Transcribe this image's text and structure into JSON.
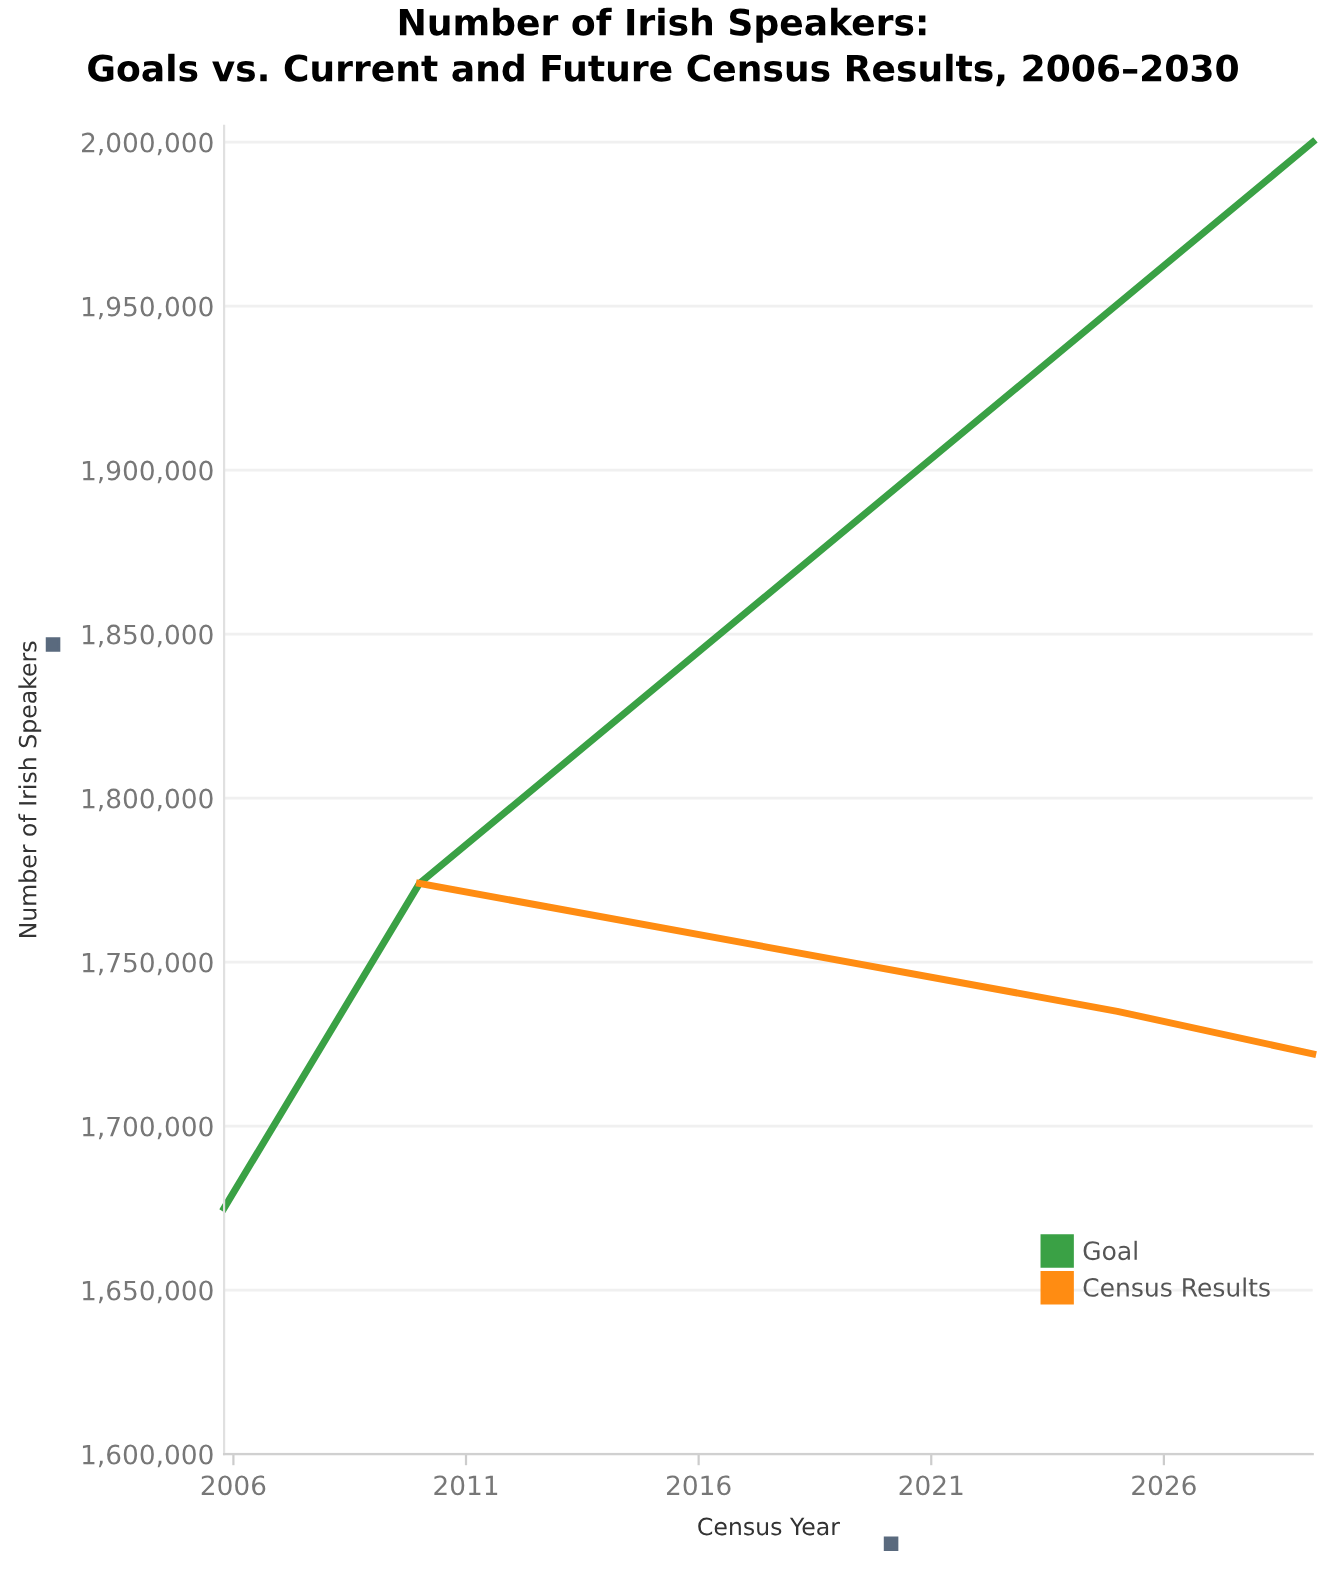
{
  "chart_data": {
    "type": "line",
    "title": "Number of Irish Speakers:\nGoals vs. Current and Future Census Results, 2006–2030",
    "xlabel": "Census Year",
    "ylabel": "Number of Irish Speakers",
    "series": [
      {
        "name": "Goal",
        "color": "#3aa145",
        "x": [
          2005.8,
          2010,
          2029.2
        ],
        "values": [
          1675000,
          1774000,
          2000000
        ]
      },
      {
        "name": "Census Results",
        "color": "#ff8c12",
        "x": [
          2010,
          2025,
          2029.2
        ],
        "values": [
          1774000,
          1735000,
          1722000
        ]
      }
    ],
    "xlim": [
      2005.8,
      2029.2
    ],
    "xticks": [
      2006,
      2011,
      2016,
      2021,
      2026
    ],
    "ylim": [
      1600000,
      2005000
    ],
    "yticks": [
      {
        "value": 1600000,
        "label": "1,600,000"
      },
      {
        "value": 1650000,
        "label": "1,650,000"
      },
      {
        "value": 1700000,
        "label": "1,700,000"
      },
      {
        "value": 1750000,
        "label": "1,750,000"
      },
      {
        "value": 1800000,
        "label": "1,800,000"
      },
      {
        "value": 1850000,
        "label": "1,850,000"
      },
      {
        "value": 1900000,
        "label": "1,900,000"
      },
      {
        "value": 1950000,
        "label": "1,950,000"
      },
      {
        "value": 2000000,
        "label": "2,000,000"
      }
    ],
    "grid": "y",
    "legend": "bottom right",
    "marker": "none",
    "line_style": "solid"
  }
}
